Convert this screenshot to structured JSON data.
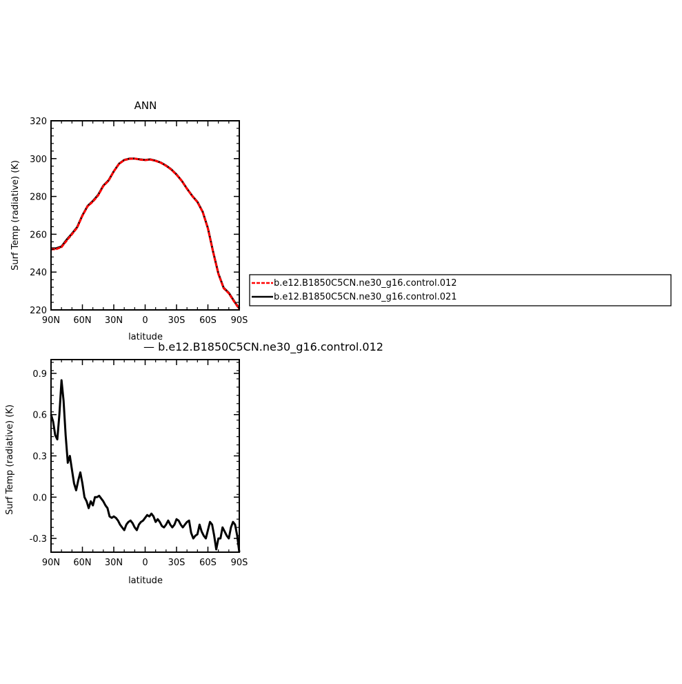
{
  "chart_data": [
    {
      "type": "line",
      "title": "ANN",
      "xlabel": "latitude",
      "ylabel": "Surf Temp (radiative) (K)",
      "xlim": [
        90,
        -90
      ],
      "ylim": [
        220,
        320
      ],
      "xticks": [
        90,
        60,
        30,
        0,
        -30,
        -60,
        -90
      ],
      "xtick_labels": [
        "90N",
        "60N",
        "30N",
        "0",
        "30S",
        "60S",
        "90S"
      ],
      "yticks": [
        220,
        240,
        260,
        280,
        300,
        320
      ],
      "ytick_labels": [
        "220",
        "240",
        "260",
        "280",
        "300",
        "320"
      ],
      "x": [
        90,
        85,
        80,
        75,
        70,
        65,
        60,
        55,
        50,
        45,
        40,
        35,
        30,
        25,
        20,
        15,
        10,
        5,
        0,
        -5,
        -10,
        -15,
        -20,
        -25,
        -30,
        -35,
        -40,
        -45,
        -50,
        -55,
        -60,
        -65,
        -70,
        -75,
        -80,
        -85,
        -90
      ],
      "series": [
        {
          "name": "b.e12.B1850C5CN.ne30_g16.control.012",
          "color": "#ff0000",
          "dash": true,
          "values": [
            252,
            252.2,
            253.2,
            256.7,
            260,
            263.5,
            269.8,
            274.8,
            277.3,
            280.5,
            285.5,
            288.3,
            293.2,
            297.2,
            299.2,
            299.9,
            300,
            299.5,
            299.2,
            299.5,
            298.8,
            297.8,
            296.2,
            294.2,
            291.5,
            288.2,
            284,
            280.2,
            277,
            271.8,
            263,
            250.5,
            239,
            231.5,
            228.8,
            224.5,
            220.5
          ]
        },
        {
          "name": "b.e12.B1850C5CN.ne30_g16.control.021",
          "color": "#000000",
          "dash": false,
          "values": [
            252.5,
            252.6,
            253.5,
            257.2,
            260.3,
            263.8,
            270,
            275,
            277.6,
            280.8,
            285.7,
            288.5,
            293.3,
            297.3,
            299.3,
            300,
            300,
            299.6,
            299.3,
            299.6,
            298.9,
            297.9,
            296.3,
            294.3,
            291.6,
            288.3,
            284.1,
            280.3,
            277.1,
            271.9,
            263.2,
            250.7,
            239.2,
            231.7,
            229,
            224.7,
            220.8
          ]
        }
      ],
      "legend": "right",
      "grid": false
    },
    {
      "type": "line",
      "title": "— b.e12.B1850C5CN.ne30_g16.control.012",
      "xlabel": "latitude",
      "ylabel": "Surf Temp (radiative) (K)",
      "xlim": [
        90,
        -90
      ],
      "ylim": [
        -0.4,
        1.0
      ],
      "xticks": [
        90,
        60,
        30,
        0,
        -30,
        -60,
        -90
      ],
      "xtick_labels": [
        "90N",
        "60N",
        "30N",
        "0",
        "30S",
        "60S",
        "90S"
      ],
      "yticks": [
        -0.3,
        0.0,
        0.3,
        0.6,
        0.9
      ],
      "ytick_labels": [
        "-0.3",
        "0.0",
        "0.3",
        "0.6",
        "0.9"
      ],
      "x": [
        90,
        88,
        86,
        84,
        82,
        80,
        78,
        76,
        74,
        72,
        70,
        68,
        66,
        64,
        62,
        60,
        58,
        56,
        54,
        52,
        50,
        48,
        46,
        44,
        42,
        40,
        38,
        36,
        34,
        32,
        30,
        28,
        26,
        24,
        22,
        20,
        18,
        16,
        14,
        12,
        10,
        8,
        6,
        4,
        2,
        0,
        -2,
        -4,
        -6,
        -8,
        -10,
        -12,
        -14,
        -16,
        -18,
        -20,
        -22,
        -24,
        -26,
        -28,
        -30,
        -32,
        -34,
        -36,
        -38,
        -40,
        -42,
        -44,
        -46,
        -48,
        -50,
        -52,
        -54,
        -56,
        -58,
        -60,
        -62,
        -64,
        -66,
        -68,
        -70,
        -72,
        -74,
        -76,
        -78,
        -80,
        -82,
        -84,
        -86,
        -88,
        -90
      ],
      "series": [
        {
          "name": "",
          "color": "#000000",
          "dash": false,
          "values": [
            0.6,
            0.55,
            0.45,
            0.42,
            0.6,
            0.85,
            0.7,
            0.45,
            0.25,
            0.3,
            0.2,
            0.1,
            0.05,
            0.12,
            0.18,
            0.1,
            0.0,
            -0.03,
            -0.08,
            -0.03,
            -0.06,
            0.0,
            0.0,
            0.01,
            -0.01,
            -0.03,
            -0.06,
            -0.08,
            -0.14,
            -0.15,
            -0.14,
            -0.15,
            -0.17,
            -0.2,
            -0.22,
            -0.24,
            -0.2,
            -0.18,
            -0.17,
            -0.19,
            -0.22,
            -0.24,
            -0.2,
            -0.18,
            -0.17,
            -0.15,
            -0.13,
            -0.14,
            -0.12,
            -0.14,
            -0.18,
            -0.16,
            -0.18,
            -0.21,
            -0.22,
            -0.2,
            -0.17,
            -0.2,
            -0.22,
            -0.2,
            -0.16,
            -0.17,
            -0.2,
            -0.22,
            -0.2,
            -0.18,
            -0.17,
            -0.26,
            -0.3,
            -0.28,
            -0.27,
            -0.2,
            -0.25,
            -0.28,
            -0.3,
            -0.24,
            -0.18,
            -0.2,
            -0.28,
            -0.38,
            -0.3,
            -0.3,
            -0.22,
            -0.25,
            -0.28,
            -0.3,
            -0.22,
            -0.18,
            -0.2,
            -0.28,
            -0.4
          ]
        }
      ],
      "grid": false
    }
  ]
}
